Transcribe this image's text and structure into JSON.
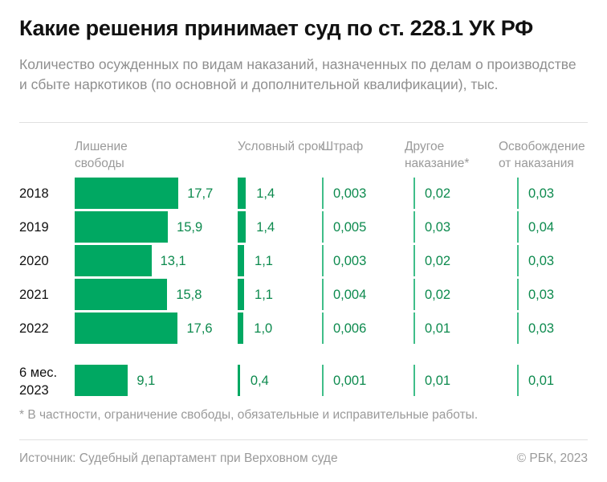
{
  "title": "Какие решения принимает суд по ст. 228.1 УК РФ",
  "subtitle": "Количество осужденных по видам наказаний, назначенных по делам о производстве и сбыте наркотиков (по основной и дополнительной квалификации), тыс.",
  "footnote": "* В частности, ограничение свободы, обязательные и исправительные работы.",
  "source": "Источник: Судебный департамент при Верховном суде",
  "copyright": "© РБК, 2023",
  "colors": {
    "bar": "#00a862",
    "value_text": "#0d8a4e"
  },
  "chart_data": {
    "type": "bar",
    "orientation": "horizontal",
    "categories": [
      "2018",
      "2019",
      "2020",
      "2021",
      "2022",
      "6 мес. 2023"
    ],
    "series": [
      {
        "name": "Лишение свободы",
        "values": [
          17.7,
          15.9,
          13.1,
          15.8,
          17.6,
          9.1
        ],
        "labels": [
          "17,7",
          "15,9",
          "13,1",
          "15,8",
          "17,6",
          "9,1"
        ]
      },
      {
        "name": "Условный срок",
        "values": [
          1.4,
          1.4,
          1.1,
          1.1,
          1.0,
          0.4
        ],
        "labels": [
          "1,4",
          "1,4",
          "1,1",
          "1,1",
          "1,0",
          "0,4"
        ]
      },
      {
        "name": "Штраф",
        "values": [
          0.003,
          0.005,
          0.003,
          0.004,
          0.006,
          0.001
        ],
        "labels": [
          "0,003",
          "0,005",
          "0,003",
          "0,004",
          "0,006",
          "0,001"
        ]
      },
      {
        "name": "Другое наказание*",
        "values": [
          0.02,
          0.03,
          0.02,
          0.02,
          0.01,
          0.01
        ],
        "labels": [
          "0,02",
          "0,03",
          "0,02",
          "0,02",
          "0,01",
          "0,01"
        ]
      },
      {
        "name": "Освобождение от наказания",
        "values": [
          0.03,
          0.04,
          0.03,
          0.03,
          0.03,
          0.01
        ],
        "labels": [
          "0,03",
          "0,04",
          "0,03",
          "0,03",
          "0,03",
          "0,01"
        ]
      }
    ],
    "unit": "тыс."
  }
}
